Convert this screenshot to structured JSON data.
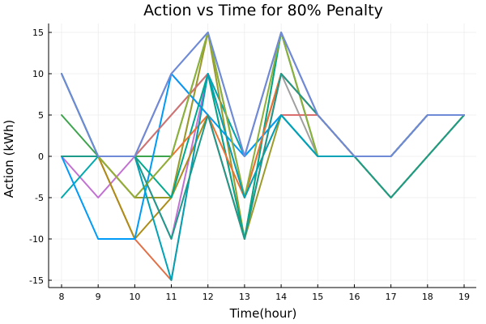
{
  "chart_data": {
    "type": "line",
    "title": "Action vs Time for 80% Penalty",
    "xlabel": "Time(hour)",
    "ylabel": "Action (kWh)",
    "xlim": [
      8,
      19
    ],
    "ylim": [
      -15,
      15
    ],
    "x_ticks": [
      8,
      9,
      10,
      11,
      12,
      13,
      14,
      15,
      16,
      17,
      18,
      19
    ],
    "y_ticks": [
      -15,
      -10,
      -5,
      0,
      5,
      10,
      15
    ],
    "grid": true,
    "legend": "none",
    "x": [
      8,
      9,
      10,
      11,
      12,
      13,
      14,
      15,
      16,
      17,
      18,
      19
    ],
    "series": [
      {
        "color": "#e26f46",
        "values": [
          0,
          0,
          -10,
          -15,
          10,
          -10,
          10,
          5,
          0,
          0,
          5,
          5
        ]
      },
      {
        "color": "#3da44d",
        "values": [
          5,
          0,
          0,
          0,
          15,
          -5,
          10,
          5,
          0,
          -5,
          0,
          5
        ]
      },
      {
        "color": "#c271d2",
        "values": [
          0,
          -5,
          0,
          -10,
          10,
          0,
          15,
          5,
          0,
          0,
          5,
          5
        ]
      },
      {
        "color": "#ac8d18",
        "values": [
          0,
          0,
          -10,
          -5,
          5,
          -10,
          15,
          0,
          0,
          -5,
          0,
          5
        ]
      },
      {
        "color": "#00a9ad",
        "values": [
          -5,
          0,
          0,
          5,
          10,
          0,
          5,
          0,
          0,
          0,
          5,
          5
        ]
      },
      {
        "color": "#ed5e93",
        "values": [
          0,
          0,
          0,
          10,
          5,
          -10,
          10,
          5,
          0,
          0,
          5,
          5
        ]
      },
      {
        "color": "#a0a0a0",
        "values": [
          0,
          0,
          -5,
          -5,
          15,
          -5,
          10,
          0,
          0,
          0,
          5,
          5
        ]
      },
      {
        "color": "#9b9b2a",
        "values": [
          10,
          0,
          -5,
          -5,
          15,
          -10,
          5,
          0,
          0,
          -5,
          0,
          5
        ]
      },
      {
        "color": "#009af9",
        "values": [
          0,
          -10,
          -10,
          10,
          5,
          0,
          5,
          0,
          0,
          0,
          5,
          5
        ]
      },
      {
        "color": "#da6f6f",
        "values": [
          10,
          0,
          0,
          5,
          10,
          -5,
          5,
          5,
          0,
          0,
          5,
          5
        ]
      },
      {
        "color": "#00a98d",
        "values": [
          0,
          0,
          0,
          -5,
          10,
          -10,
          15,
          0,
          0,
          -5,
          0,
          5
        ]
      },
      {
        "color": "#6a8fd8",
        "values": [
          10,
          0,
          0,
          10,
          15,
          0,
          15,
          5,
          0,
          0,
          5,
          5
        ]
      },
      {
        "color": "#f07030",
        "values": [
          0,
          0,
          -5,
          0,
          5,
          -5,
          10,
          5,
          0,
          0,
          5,
          5
        ]
      },
      {
        "color": "#8db03a",
        "values": [
          0,
          0,
          -5,
          0,
          15,
          -5,
          15,
          0,
          0,
          -5,
          0,
          5
        ]
      },
      {
        "color": "#00a2b8",
        "values": [
          10,
          0,
          0,
          -15,
          10,
          -5,
          5,
          0,
          0,
          0,
          5,
          5
        ]
      },
      {
        "color": "#1d9a8a",
        "values": [
          0,
          0,
          0,
          -10,
          5,
          -10,
          10,
          5,
          0,
          -5,
          0,
          5
        ]
      },
      {
        "color": "#6f8ad6",
        "values": [
          10,
          0,
          0,
          10,
          15,
          0,
          15,
          5,
          0,
          0,
          5,
          5
        ]
      }
    ]
  }
}
